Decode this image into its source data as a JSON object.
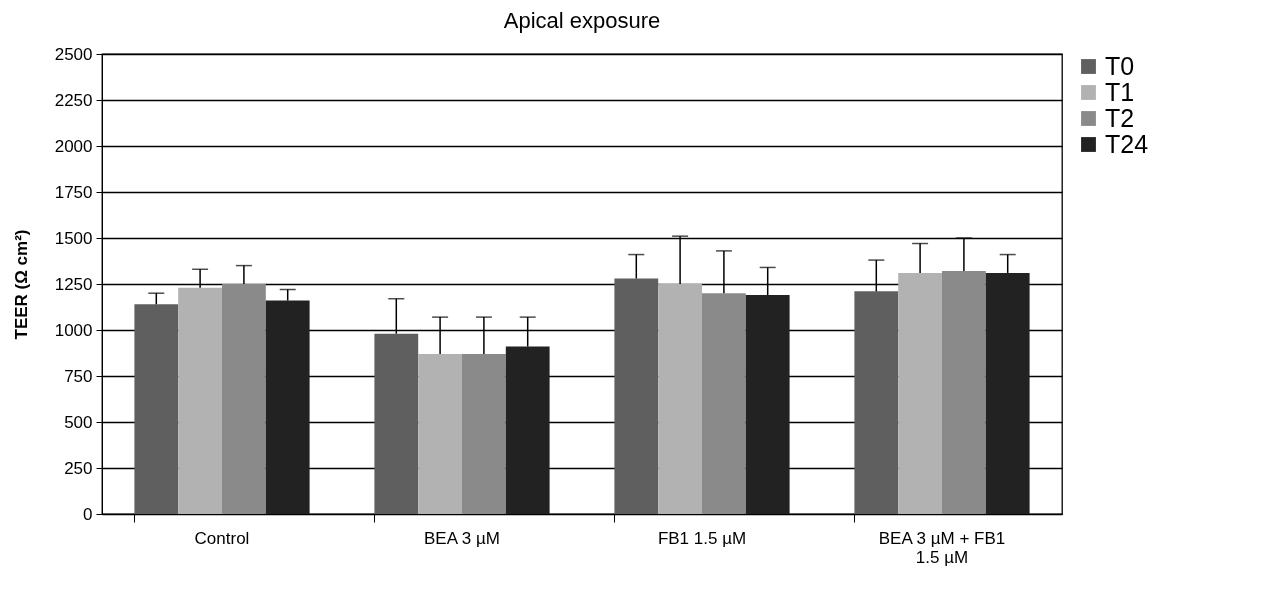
{
  "chart_data": {
    "type": "bar",
    "title": "Apical exposure",
    "ylabel": "TEER  (Ω cm²)",
    "categories": [
      "Control",
      "BEA 3 µM",
      "FB1 1.5 µM",
      "BEA 3 µM + FB1 1.5 µM"
    ],
    "series": [
      {
        "name": "T0",
        "color": "#5f5f5f",
        "values": [
          1140,
          980,
          1280,
          1210
        ],
        "errors": [
          [
            1140,
            1200
          ],
          [
            980,
            1170
          ],
          [
            1280,
            1410
          ],
          [
            1210,
            1380
          ]
        ]
      },
      {
        "name": "T1",
        "color": "#b2b2b2",
        "values": [
          1230,
          870,
          1250,
          1310
        ],
        "errors": [
          [
            1230,
            1330
          ],
          [
            870,
            1070
          ],
          [
            1250,
            1510
          ],
          [
            1310,
            1470
          ]
        ]
      },
      {
        "name": "T2",
        "color": "#8a8a8a",
        "values": [
          1250,
          870,
          1200,
          1320
        ],
        "errors": [
          [
            1250,
            1350
          ],
          [
            870,
            1070
          ],
          [
            1200,
            1430
          ],
          [
            1320,
            1500
          ]
        ]
      },
      {
        "name": "T24",
        "color": "#222222",
        "values": [
          1160,
          910,
          1190,
          1310
        ],
        "errors": [
          [
            1160,
            1220
          ],
          [
            910,
            1070
          ],
          [
            1190,
            1340
          ],
          [
            1310,
            1410
          ]
        ]
      }
    ],
    "ylim": [
      0,
      2500
    ],
    "yticks": [
      0,
      250,
      500,
      750,
      1000,
      1250,
      1500,
      1750,
      2000,
      2250,
      2500
    ],
    "grid": "y",
    "legend": "right"
  }
}
